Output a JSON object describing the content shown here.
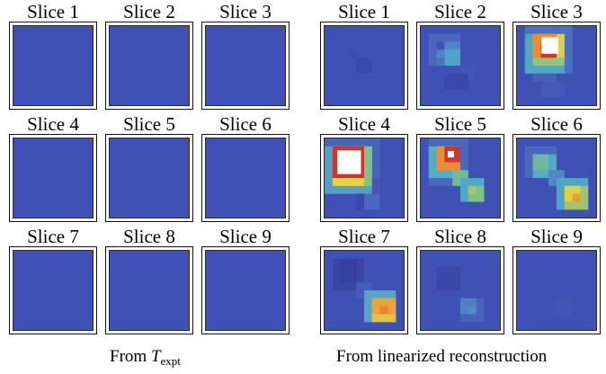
{
  "colors": {
    "background": "#3f51b4",
    "light_blue": "#4a68bd",
    "cyan": "#4fb0c4",
    "green": "#7cc28a",
    "yellow": "#e3d246",
    "orange": "#ef8a2f",
    "red": "#d3332a",
    "white": "#ffffff"
  },
  "left_panel": {
    "slices": [
      {
        "title": "Slice 1"
      },
      {
        "title": "Slice 2"
      },
      {
        "title": "Slice 3"
      },
      {
        "title": "Slice 4"
      },
      {
        "title": "Slice 5"
      },
      {
        "title": "Slice 6"
      },
      {
        "title": "Slice 7"
      },
      {
        "title": "Slice 8"
      },
      {
        "title": "Slice 9"
      }
    ],
    "caption_prefix": "From ",
    "caption_symbol": "T",
    "caption_subscript": "expt"
  },
  "right_panel": {
    "slices": [
      {
        "title": "Slice 1"
      },
      {
        "title": "Slice 2"
      },
      {
        "title": "Slice 3"
      },
      {
        "title": "Slice 4"
      },
      {
        "title": "Slice 5"
      },
      {
        "title": "Slice 6"
      },
      {
        "title": "Slice 7"
      },
      {
        "title": "Slice 8"
      },
      {
        "title": "Slice 9"
      }
    ],
    "caption": "From linearized reconstruction"
  }
}
